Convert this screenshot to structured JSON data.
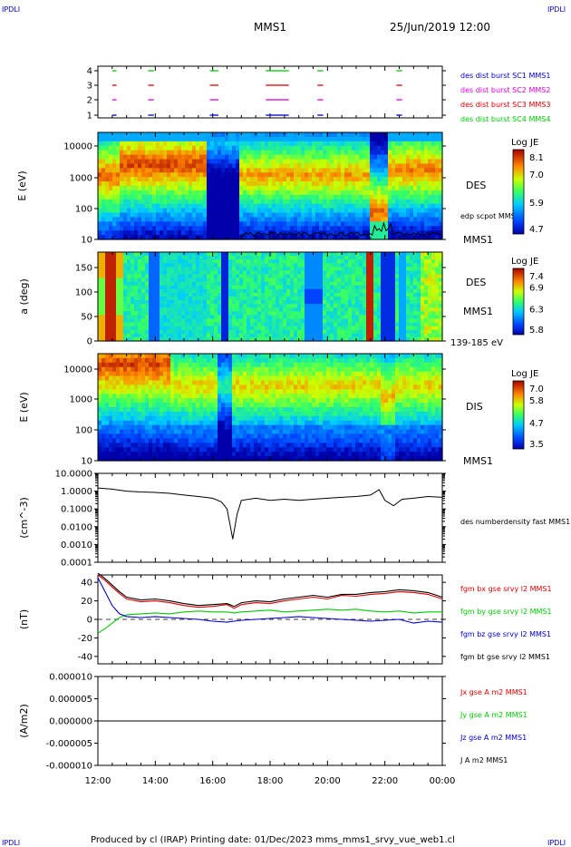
{
  "header": {
    "corner_tl": "IPDLI",
    "corner_tr": "IPDLI",
    "corner_bl": "IPDLI",
    "corner_br": "IPDLI",
    "spacecraft": "MMS1",
    "datetime": "25/Jun/2019 12:00"
  },
  "footer": {
    "text": "Produced by cl (IRAP)   Printing date: 01/Dec/2023   mms_mms1_srvy_vue_web1.cl"
  },
  "colors": {
    "mms1": "#0000cc",
    "mms2": "#dd00dd",
    "mms3": "#dd0000",
    "mms4": "#00cc00",
    "bx": "#dd0000",
    "by": "#00cc00",
    "bz": "#0000cc",
    "bt": "#000000"
  },
  "chart_data": [
    {
      "type": "scatter",
      "panel": "burst-availability",
      "yticks": [
        "1",
        "2",
        "3",
        "4"
      ],
      "legend": [
        {
          "name": "des dist burst SC1 MMS1",
          "color": "#0000cc"
        },
        {
          "name": "des dist burst SC2 MMS2",
          "color": "#dd00dd"
        },
        {
          "name": "des dist burst SC3 MMS3",
          "color": "#dd0000"
        },
        {
          "name": "des dist burst SC4 MMS4",
          "color": "#00cc00"
        }
      ],
      "intervals_hours": [
        [
          12.5,
          12.65
        ],
        [
          13.75,
          13.95
        ],
        [
          15.9,
          16.2
        ],
        [
          17.85,
          18.3
        ],
        [
          18.3,
          18.65
        ],
        [
          19.65,
          19.85
        ],
        [
          22.4,
          22.6
        ]
      ]
    },
    {
      "type": "heatmap",
      "panel": "des-energy-spectrogram",
      "ylabel": "E (eV)",
      "yscale": "log",
      "ylim": [
        10,
        40000
      ],
      "yticks": [
        "10",
        "100",
        "1000",
        "10000"
      ],
      "label": "DES",
      "sc": "MMS1",
      "overlay_label": "edp scpot MMS1",
      "colorbar": {
        "title": "Log JE",
        "ticks": [
          "8.1",
          "7.0",
          "5.9",
          "4.7"
        ],
        "range": [
          4.7,
          8.1
        ]
      }
    },
    {
      "type": "heatmap",
      "panel": "des-pitch-angle",
      "ylabel": "a (deg)",
      "ylim": [
        0,
        180
      ],
      "yticks": [
        "0",
        "50",
        "100",
        "150"
      ],
      "label": "DES",
      "sc": "MMS1",
      "energy_range": "139-185 eV",
      "colorbar": {
        "title": "Log JE",
        "ticks": [
          "7.4",
          "6.9",
          "6.3",
          "5.8"
        ],
        "range": [
          5.8,
          7.4
        ]
      }
    },
    {
      "type": "heatmap",
      "panel": "dis-energy-spectrogram",
      "ylabel": "E (eV)",
      "yscale": "log",
      "ylim": [
        10,
        40000
      ],
      "yticks": [
        "10",
        "100",
        "1000",
        "10000"
      ],
      "label": "DIS",
      "sc": "MMS1",
      "colorbar": {
        "title": "Log JE",
        "ticks": [
          "7.0",
          "5.8",
          "4.7",
          "3.5"
        ],
        "range": [
          3.5,
          7.0
        ]
      }
    },
    {
      "type": "line",
      "panel": "number-density",
      "ylabel": "(cm^-3)",
      "yscale": "log",
      "ylim": [
        0.0001,
        10
      ],
      "yticks": [
        "0.0001",
        "0.0010",
        "0.0100",
        "0.1000",
        "1.0000",
        "10.0000"
      ],
      "series": [
        {
          "name": "des numberdensity fast MMS1",
          "color": "#000000",
          "x": [
            12.0,
            12.5,
            13.0,
            13.5,
            14.0,
            14.5,
            15.0,
            15.5,
            16.0,
            16.3,
            16.5,
            16.7,
            16.85,
            17.0,
            17.5,
            18.0,
            18.5,
            19.0,
            19.5,
            20.0,
            20.5,
            21.0,
            21.5,
            21.8,
            22.0,
            22.3,
            22.6,
            23.0,
            23.5,
            24.0
          ],
          "values": [
            1.5,
            1.3,
            1.0,
            0.9,
            0.85,
            0.75,
            0.6,
            0.5,
            0.4,
            0.25,
            0.1,
            0.002,
            0.05,
            0.3,
            0.4,
            0.3,
            0.35,
            0.3,
            0.35,
            0.4,
            0.45,
            0.5,
            0.6,
            1.2,
            0.3,
            0.15,
            0.35,
            0.4,
            0.5,
            0.45
          ]
        }
      ]
    },
    {
      "type": "line",
      "panel": "magnetic-field",
      "ylabel": "(nT)",
      "ylim": [
        -48,
        48
      ],
      "yticks": [
        "-40",
        "-20",
        "0",
        "20",
        "40"
      ],
      "x": [
        12.0,
        12.25,
        12.5,
        12.75,
        13.0,
        13.5,
        14.0,
        14.5,
        15.0,
        15.5,
        16.0,
        16.5,
        16.75,
        17.0,
        17.5,
        18.0,
        18.5,
        19.0,
        19.5,
        20.0,
        20.5,
        21.0,
        21.5,
        22.0,
        22.5,
        23.0,
        23.5,
        24.0
      ],
      "series": [
        {
          "name": "fgm bx gse srvy l2 MMS1",
          "color": "#dd0000",
          "values": [
            48,
            42,
            35,
            28,
            22,
            19,
            20,
            18,
            15,
            13,
            14,
            16,
            12,
            16,
            18,
            17,
            20,
            22,
            24,
            22,
            26,
            25,
            27,
            28,
            30,
            29,
            27,
            22
          ]
        },
        {
          "name": "fgm by gse srvy l2 MMS1",
          "color": "#00cc00",
          "values": [
            -15,
            -10,
            -4,
            2,
            5,
            6,
            7,
            6,
            8,
            9,
            8,
            8,
            7,
            8,
            9,
            10,
            8,
            9,
            10,
            11,
            10,
            11,
            9,
            8,
            9,
            7,
            8,
            8
          ]
        },
        {
          "name": "fgm bz gse srvy l2 MMS1",
          "color": "#0000cc",
          "values": [
            45,
            30,
            15,
            6,
            3,
            2,
            3,
            2,
            1,
            0,
            -2,
            -3,
            -2,
            -1,
            0,
            1,
            2,
            3,
            2,
            1,
            0,
            -1,
            -2,
            -1,
            0,
            -4,
            -2,
            -3
          ]
        },
        {
          "name": "fgm bt gse srvy l2 MMS1",
          "color": "#000000",
          "values": [
            50,
            44,
            37,
            30,
            24,
            21,
            22,
            20,
            17,
            15,
            16,
            17,
            14,
            18,
            20,
            19,
            22,
            24,
            26,
            24,
            27,
            27,
            29,
            30,
            32,
            31,
            29,
            24
          ]
        }
      ]
    },
    {
      "type": "line",
      "panel": "current-density",
      "ylabel": "(A/m2)",
      "ylim": [
        -1e-05,
        1e-05
      ],
      "yticks": [
        "-0.000010",
        "-0.000005",
        "0.000000",
        "0.000005",
        "0.000010"
      ],
      "xlabel_ticks": [
        "12:00",
        "14:00",
        "16:00",
        "18:00",
        "20:00",
        "22:00",
        "00:00"
      ],
      "series": [
        {
          "name": "Jx gse A m2 MMS1",
          "color": "#dd0000"
        },
        {
          "name": "Jy gse A m2 MMS1",
          "color": "#00cc00"
        },
        {
          "name": "Jz gse A m2 MMS1",
          "color": "#0000cc"
        },
        {
          "name": "J A m2 MMS1",
          "color": "#000000"
        }
      ]
    }
  ]
}
